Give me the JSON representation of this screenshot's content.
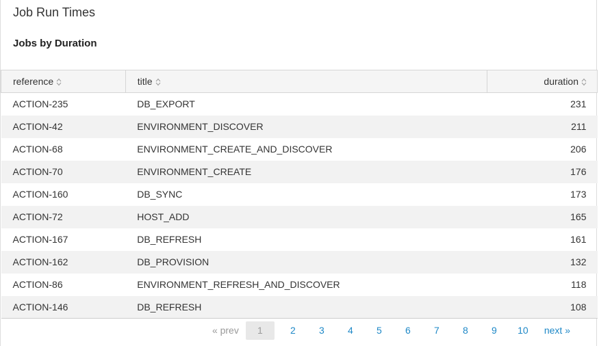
{
  "header": {
    "title": "Job Run Times"
  },
  "panel": {
    "title": "Jobs by Duration"
  },
  "table": {
    "columns": [
      "reference",
      "title",
      "duration"
    ],
    "rows": [
      [
        "ACTION-235",
        "DB_EXPORT",
        231
      ],
      [
        "ACTION-42",
        "ENVIRONMENT_DISCOVER",
        211
      ],
      [
        "ACTION-68",
        "ENVIRONMENT_CREATE_AND_DISCOVER",
        206
      ],
      [
        "ACTION-70",
        "ENVIRONMENT_CREATE",
        176
      ],
      [
        "ACTION-160",
        "DB_SYNC",
        173
      ],
      [
        "ACTION-72",
        "HOST_ADD",
        165
      ],
      [
        "ACTION-167",
        "DB_REFRESH",
        161
      ],
      [
        "ACTION-162",
        "DB_PROVISION",
        132
      ],
      [
        "ACTION-86",
        "ENVIRONMENT_REFRESH_AND_DISCOVER",
        118
      ],
      [
        "ACTION-146",
        "DB_REFRESH",
        108
      ]
    ]
  },
  "pagination": {
    "prev": "« prev",
    "pages": [
      1,
      2,
      3,
      4,
      5,
      6,
      7,
      8,
      9,
      10
    ],
    "current": 1,
    "next": "next »"
  }
}
